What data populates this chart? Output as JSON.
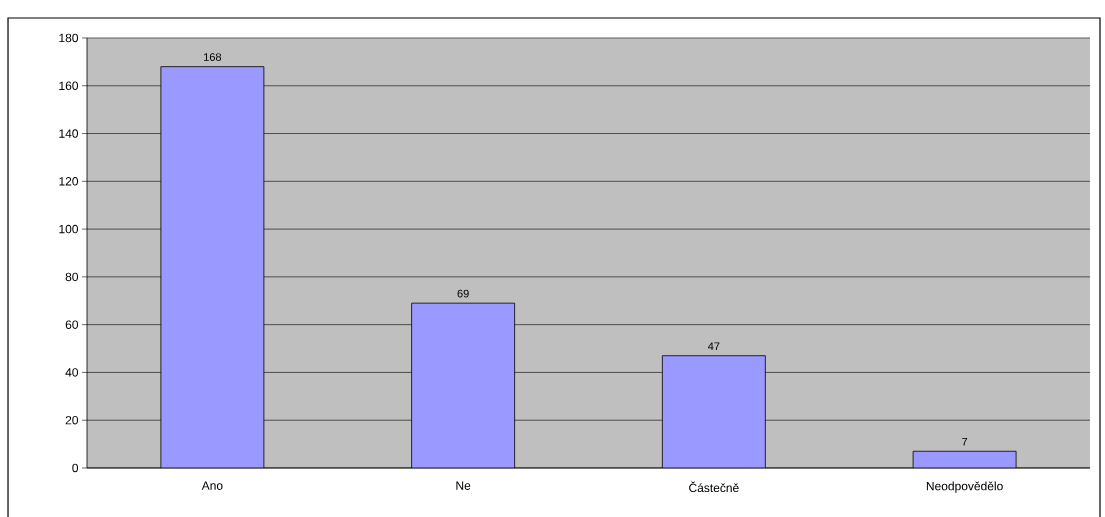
{
  "chart_data": {
    "type": "bar",
    "categories": [
      "Ano",
      "Ne",
      "Částečně",
      "Neodpovědělo"
    ],
    "values": [
      168,
      69,
      47,
      7
    ],
    "color": "#9999ff",
    "ylim": [
      0,
      180
    ],
    "yticks": [
      0,
      20,
      40,
      60,
      80,
      100,
      120,
      140,
      160,
      180
    ],
    "grid": "y",
    "data_labels": true
  }
}
